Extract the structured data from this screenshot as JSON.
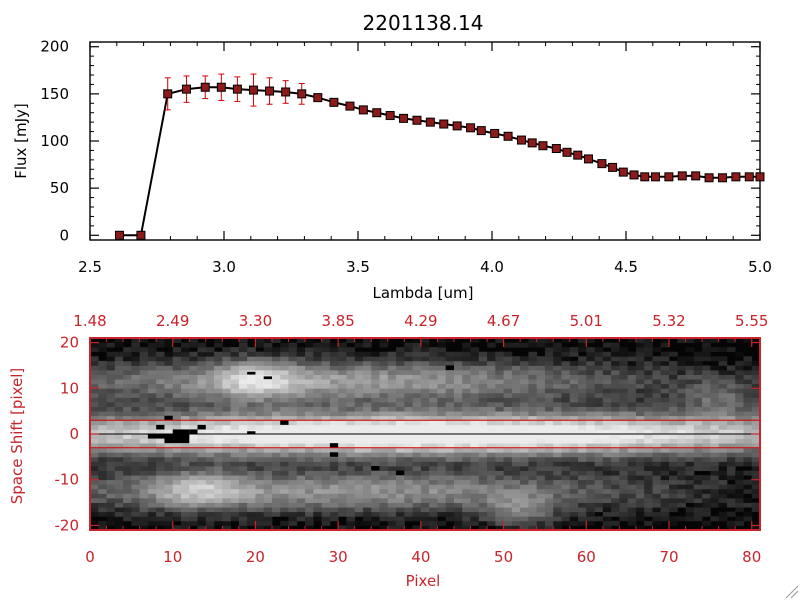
{
  "colors": {
    "spectrum_line": "#000000",
    "errorbar": "#d00000",
    "marker": "#8b1a1a",
    "image_axes": "#c8242b",
    "extraction_lines": "#d00000"
  },
  "chart_data": [
    {
      "type": "line",
      "title": "2201138.14",
      "xlabel": "Lambda [um]",
      "ylabel": "Flux [mJy]",
      "xlim": [
        2.5,
        5.0
      ],
      "ylim": [
        -5,
        205
      ],
      "x_ticks": [
        "2.5",
        "3.0",
        "3.5",
        "4.0",
        "4.5",
        "5.0"
      ],
      "y_ticks": [
        "0",
        "50",
        "100",
        "150",
        "200"
      ],
      "grid": false,
      "series": [
        {
          "x": [
            2.61,
            2.69,
            2.79,
            2.86,
            2.93,
            2.99,
            3.05,
            3.11,
            3.17,
            3.23,
            3.29,
            3.35,
            3.41,
            3.47,
            3.52,
            3.57,
            3.62,
            3.67,
            3.72,
            3.77,
            3.82,
            3.87,
            3.92,
            3.96,
            4.01,
            4.06,
            4.11,
            4.15,
            4.19,
            4.24,
            4.28,
            4.32,
            4.36,
            4.41,
            4.45,
            4.49,
            4.53,
            4.57,
            4.61,
            4.66,
            4.71,
            4.76,
            4.81,
            4.86,
            4.91,
            4.96,
            5.0
          ],
          "y": [
            0,
            0,
            150,
            155,
            157,
            157,
            155,
            154,
            153,
            152,
            150,
            146,
            141,
            137,
            133,
            130,
            127,
            124,
            122,
            120,
            118,
            116,
            114,
            111,
            108,
            105,
            101,
            98,
            95,
            92,
            88,
            85,
            81,
            76,
            72,
            67,
            64,
            62,
            62,
            62,
            63,
            63,
            61,
            61,
            62,
            62,
            62
          ],
          "yerr": [
            0,
            0,
            17,
            14,
            12,
            14,
            13,
            17,
            14,
            12,
            11,
            4,
            3,
            2,
            2,
            2,
            2,
            2,
            2,
            2,
            2,
            2,
            2,
            2,
            2,
            2,
            2,
            2,
            2,
            2,
            2,
            2,
            2,
            2,
            2,
            2,
            2,
            2,
            2,
            2,
            2,
            2,
            2,
            2,
            2,
            2,
            2
          ]
        }
      ]
    },
    {
      "type": "heatmap",
      "xlabel": "Pixel",
      "ylabel": "Space Shift [pixel]",
      "xlim": [
        0,
        81
      ],
      "ylim": [
        -21,
        21
      ],
      "x_ticks": [
        "0",
        "10",
        "20",
        "30",
        "40",
        "50",
        "60",
        "70",
        "80"
      ],
      "y_ticks": [
        "-20",
        "-10",
        "0",
        "10",
        "20"
      ],
      "top_ticks": [
        "1.48",
        "2.49",
        "3.30",
        "3.85",
        "4.29",
        "4.67",
        "5.01",
        "5.32",
        "5.55"
      ],
      "extraction_lines": [
        3,
        0,
        -3
      ],
      "sources": [
        {
          "x": 40,
          "y": 0,
          "sx": 40,
          "sy": 3.2,
          "amp": 1.25
        },
        {
          "x": 30,
          "y": 11.5,
          "sx": 26,
          "sy": 3.3,
          "amp": 0.6
        },
        {
          "x": 20,
          "y": 12,
          "sx": 3.5,
          "sy": 3,
          "amp": 0.45
        },
        {
          "x": 30,
          "y": -12.5,
          "sx": 27,
          "sy": 3.2,
          "amp": 0.55
        },
        {
          "x": 13,
          "y": -12,
          "sx": 4,
          "sy": 3,
          "amp": 0.4
        },
        {
          "x": 52,
          "y": -17,
          "sx": 3,
          "sy": 2.5,
          "amp": 0.35
        },
        {
          "x": 76,
          "y": 8,
          "sx": 3,
          "sy": 3,
          "amp": 0.3
        }
      ],
      "bad_pixels": [
        [
          7,
          -1,
          3,
          1
        ],
        [
          9,
          -2,
          3,
          2
        ],
        [
          10,
          -1,
          2,
          2
        ],
        [
          12,
          0,
          1,
          1
        ],
        [
          13,
          1,
          1,
          1
        ],
        [
          9,
          3,
          1,
          1
        ],
        [
          8,
          1,
          1,
          1
        ],
        [
          19,
          13,
          1,
          0.6
        ],
        [
          21,
          12,
          1,
          0.6
        ],
        [
          23,
          2,
          1,
          1
        ],
        [
          29,
          -3,
          1,
          1
        ],
        [
          29,
          -5,
          1,
          1
        ],
        [
          43,
          14,
          1,
          1
        ],
        [
          34,
          -8,
          1,
          1
        ],
        [
          37,
          -9,
          1,
          1
        ],
        [
          19,
          0,
          1,
          0.6
        ]
      ]
    }
  ]
}
